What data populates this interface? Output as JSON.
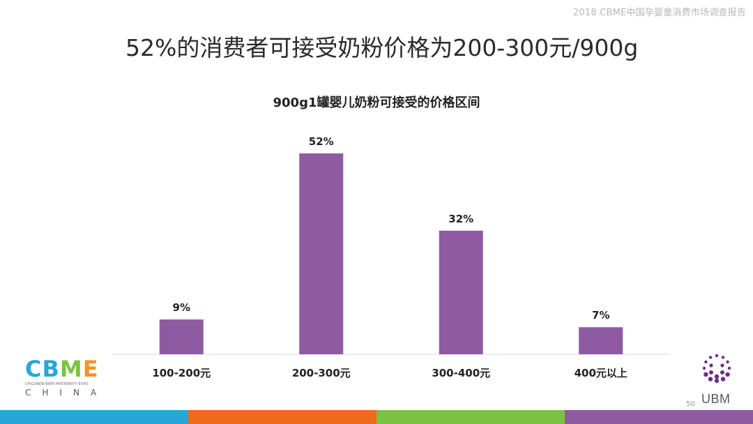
{
  "header": {
    "report_name": "2018 CBME中国孕婴童消费市场调查报告"
  },
  "slide": {
    "title": "52%的消费者可接受奶粉价格为200-300元/900g",
    "page_number": "50"
  },
  "chart_data": {
    "type": "bar",
    "title": "900g1罐婴儿奶粉可接受的价格区间",
    "categories": [
      "100-200元",
      "200-300元",
      "300-400元",
      "400元以上"
    ],
    "values": [
      9,
      52,
      32,
      7
    ],
    "value_labels": [
      "9%",
      "52%",
      "32%",
      "7%"
    ],
    "unit": "%",
    "bar_color": "#8e5ba2",
    "ylim": [
      0,
      60
    ],
    "grid": false,
    "legend": "none"
  },
  "logos": {
    "cbme": {
      "letters": "CBME",
      "subtitle": "CHILDREN-BABY-MATERNITY EXPO",
      "region": "CHINA",
      "colors": [
        "#27a6d8",
        "#27a6d8",
        "#7cc242",
        "#f29424"
      ]
    },
    "ubm": {
      "name": "UBM",
      "dot_color": "#6b2d86"
    }
  },
  "footer": {
    "stripe_colors": [
      "#27a6d8",
      "#ef6a1a",
      "#7cc242",
      "#8e5ba2"
    ]
  }
}
